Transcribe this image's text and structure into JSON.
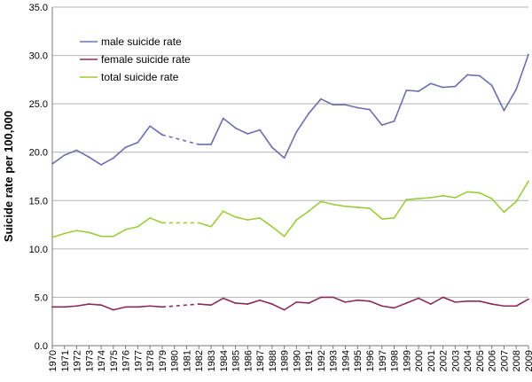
{
  "chart_data": {
    "type": "line",
    "title": "",
    "xlabel": "",
    "ylabel": "Suicide rate per 100,000",
    "ylim": [
      0,
      35
    ],
    "yticks": [
      "0.0",
      "5.0",
      "10.0",
      "15.0",
      "20.0",
      "25.0",
      "30.0",
      "35.0"
    ],
    "grid": "horizontal",
    "legend_position": "top-left",
    "x": [
      "1970",
      "1971",
      "1972",
      "1973",
      "1974",
      "1975",
      "1976",
      "1977",
      "1978",
      "1979",
      "1980",
      "1981",
      "1982",
      "1983",
      "1984",
      "1985",
      "1986",
      "1987",
      "1988",
      "1989",
      "1990",
      "1991",
      "1992",
      "1993",
      "1994",
      "1995",
      "1996",
      "1997",
      "1998",
      "1999",
      "2000",
      "2001",
      "2002",
      "2003",
      "2004",
      "2005",
      "2006",
      "2007",
      "2008",
      "2009"
    ],
    "dashed_gap_years": [
      "1979",
      "1982"
    ],
    "series": [
      {
        "name": "male suicide rate",
        "color": "#6b6fad",
        "values": [
          18.8,
          19.7,
          20.2,
          19.5,
          18.7,
          19.4,
          20.5,
          21.0,
          22.7,
          21.8,
          null,
          null,
          20.8,
          20.8,
          23.5,
          22.5,
          21.9,
          22.3,
          20.5,
          19.4,
          22.1,
          24.0,
          25.5,
          24.9,
          24.9,
          24.6,
          24.4,
          22.8,
          23.2,
          26.4,
          26.3,
          27.1,
          26.7,
          26.8,
          28.0,
          27.9,
          26.9,
          24.3,
          26.5,
          30.1
        ]
      },
      {
        "name": "female suicide rate",
        "color": "#8b2a5c",
        "values": [
          4.0,
          4.0,
          4.1,
          4.3,
          4.2,
          3.7,
          4.0,
          4.0,
          4.1,
          4.0,
          null,
          null,
          4.3,
          4.2,
          4.9,
          4.4,
          4.3,
          4.7,
          4.3,
          3.7,
          4.5,
          4.4,
          5.0,
          5.0,
          4.5,
          4.7,
          4.6,
          4.1,
          3.9,
          4.4,
          4.9,
          4.3,
          5.0,
          4.5,
          4.6,
          4.6,
          4.3,
          4.1,
          4.1,
          4.8
        ]
      },
      {
        "name": "total suicide rate",
        "color": "#9ccc3c",
        "values": [
          11.2,
          11.6,
          11.9,
          11.7,
          11.3,
          11.3,
          12.0,
          12.3,
          13.2,
          12.7,
          null,
          null,
          12.7,
          12.3,
          13.9,
          13.3,
          13.0,
          13.2,
          12.3,
          11.3,
          13.0,
          13.9,
          14.9,
          14.6,
          14.4,
          14.3,
          14.2,
          13.1,
          13.2,
          15.1,
          15.2,
          15.3,
          15.5,
          15.3,
          15.9,
          15.8,
          15.2,
          13.8,
          14.9,
          17.0
        ]
      }
    ]
  }
}
